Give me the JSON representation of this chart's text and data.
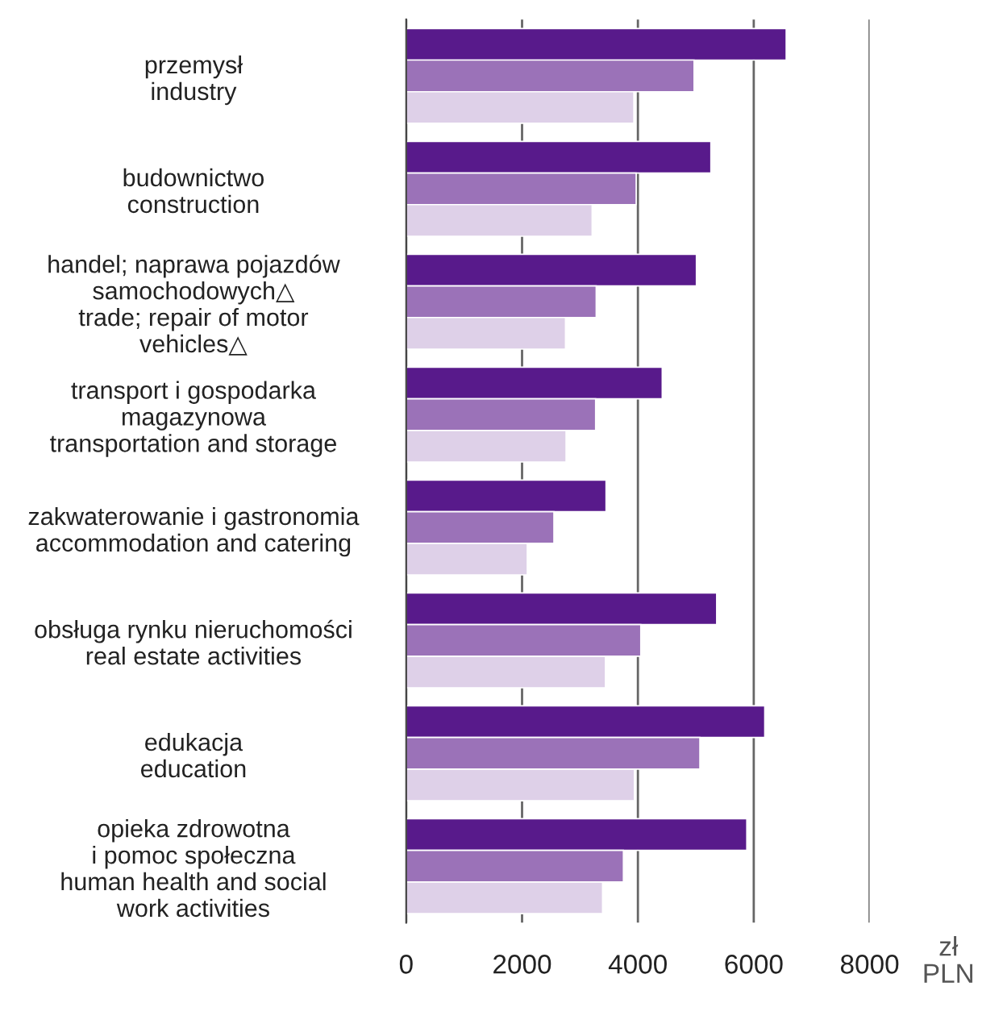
{
  "chart_data": {
    "type": "bar",
    "orientation": "horizontal",
    "categories": [
      "przemysł\nindustry",
      "budownictwo\nconstruction",
      "handel; naprawa pojazdów\nsamochodowych△\ntrade; repair of motor\nvehicles△",
      "transport i gospodarka\nmagazynowa\ntransportation and storage",
      "zakwaterowanie i gastronomia\naccommodation and catering",
      "obsługa rynku nieruchomości\nreal estate activities",
      "edukacja\neducation",
      "opieka zdrowotna\ni pomoc społeczna\nhuman health and social\nwork activities"
    ],
    "series": [
      {
        "color": "#581a8b",
        "values": [
          6560,
          5260,
          5010,
          4420,
          3450,
          5360,
          6190,
          5880
        ]
      },
      {
        "color": "#9b72b8",
        "values": [
          4970,
          3970,
          3280,
          3270,
          2550,
          4050,
          5070,
          3750
        ]
      },
      {
        "color": "#ded0e8",
        "values": [
          3930,
          3210,
          2750,
          2760,
          2090,
          3440,
          3940,
          3390
        ]
      }
    ],
    "xlabel": "zł\nPLN",
    "xlim": [
      0,
      8000
    ],
    "xticks": [
      0,
      2000,
      4000,
      6000,
      8000
    ],
    "grid": "x"
  }
}
